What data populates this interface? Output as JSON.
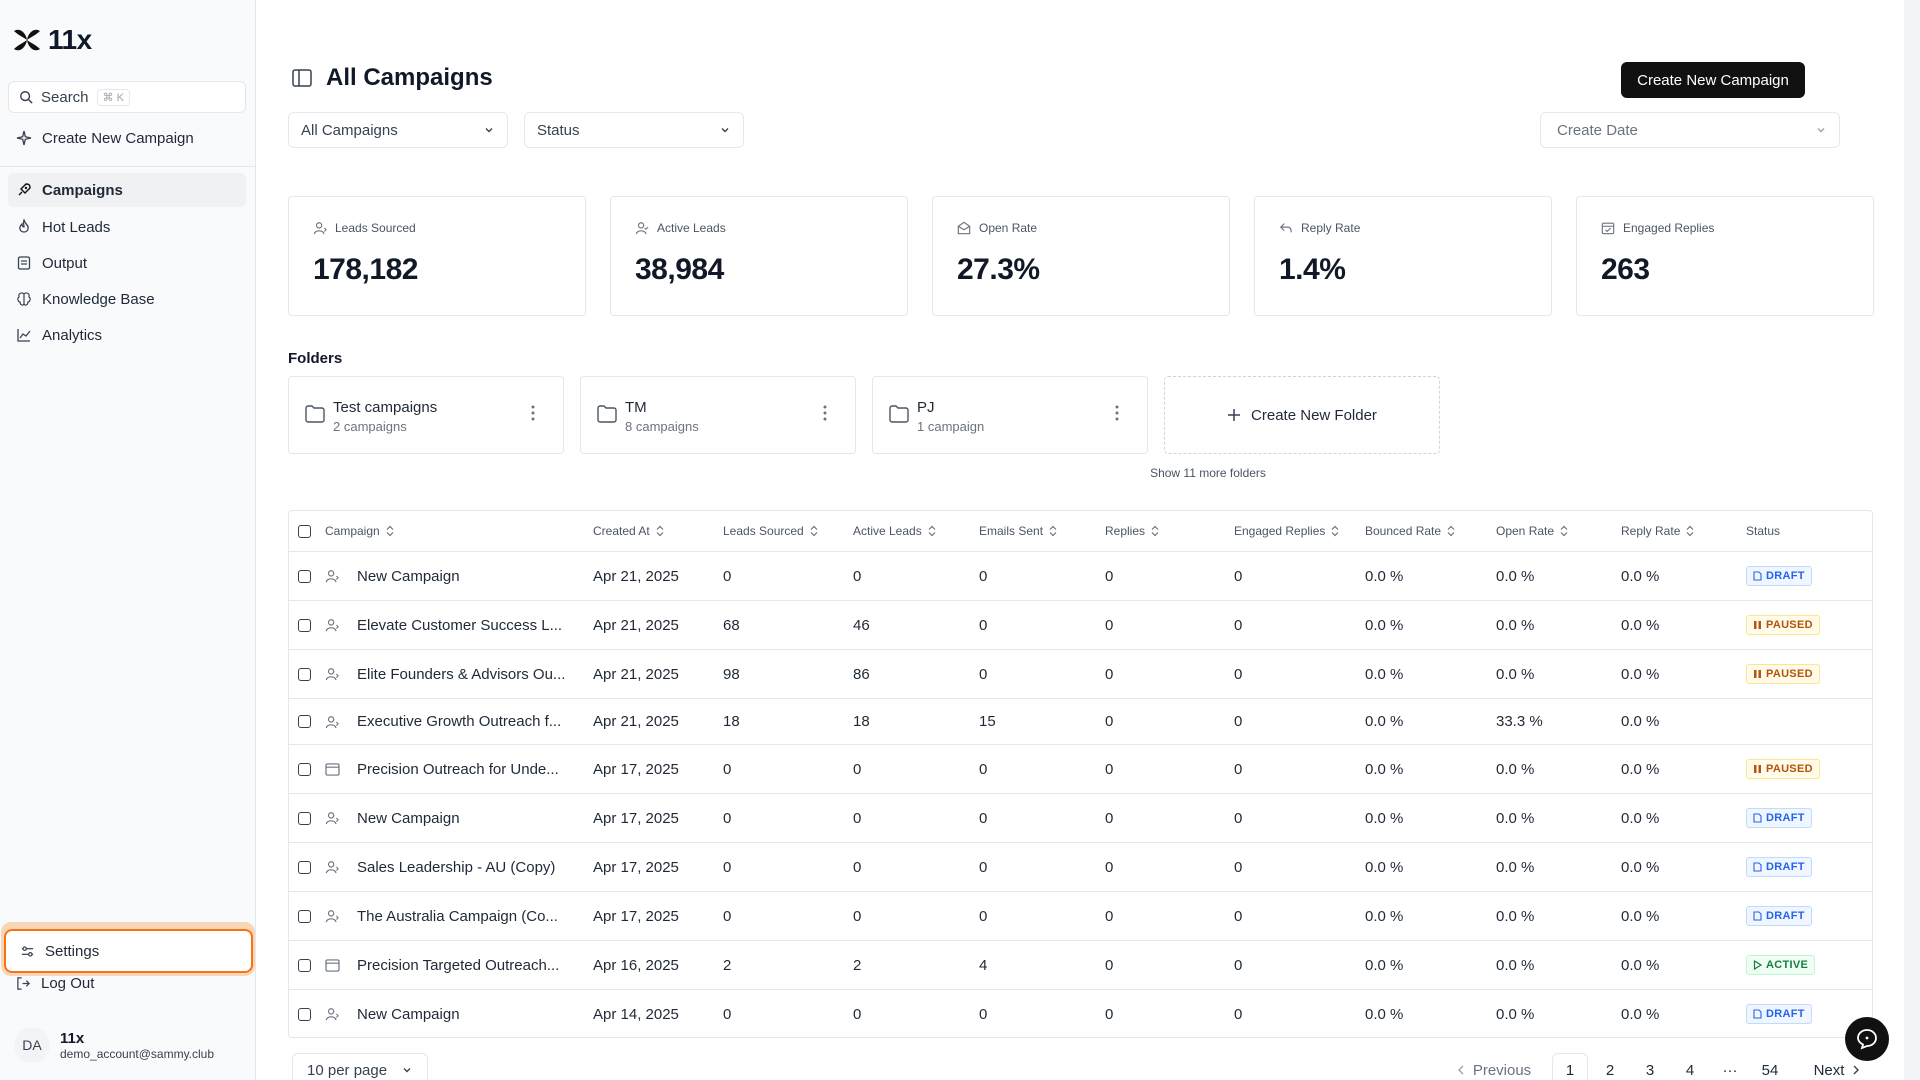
{
  "brand": {
    "name": "11x"
  },
  "sidebar": {
    "search_label": "Search",
    "search_shortcut": "⌘ K",
    "create_label": "Create New Campaign",
    "items": [
      {
        "label": "Campaigns",
        "icon": "rocket-icon"
      },
      {
        "label": "Hot Leads",
        "icon": "flame-icon"
      },
      {
        "label": "Output",
        "icon": "document-icon"
      },
      {
        "label": "Knowledge Base",
        "icon": "brain-icon"
      },
      {
        "label": "Analytics",
        "icon": "chart-icon"
      }
    ],
    "settings_label": "Settings",
    "logout_label": "Log Out",
    "user": {
      "initials": "DA",
      "name": "11x",
      "email": "demo_account@sammy.club"
    }
  },
  "header": {
    "title": "All Campaigns",
    "create_button": "Create New Campaign",
    "filter_campaigns": "All Campaigns",
    "filter_status": "Status",
    "sort_date": "Create Date"
  },
  "metrics": [
    {
      "label": "Leads Sourced",
      "value": "178,182",
      "icon": "user-icon"
    },
    {
      "label": "Active Leads",
      "value": "38,984",
      "icon": "user-check-icon"
    },
    {
      "label": "Open Rate",
      "value": "27.3%",
      "icon": "mail-open-icon"
    },
    {
      "label": "Reply Rate",
      "value": "1.4%",
      "icon": "reply-icon"
    },
    {
      "label": "Engaged Replies",
      "value": "263",
      "icon": "calendar-check-icon"
    }
  ],
  "folders": {
    "title": "Folders",
    "items": [
      {
        "name": "Test campaigns",
        "count": "2 campaigns"
      },
      {
        "name": "TM",
        "count": "8 campaigns"
      },
      {
        "name": "PJ",
        "count": "1 campaign"
      }
    ],
    "create_label": "Create New Folder",
    "more_label": "Show 11 more folders"
  },
  "table": {
    "headers": [
      "Campaign",
      "Created At",
      "Leads Sourced",
      "Active Leads",
      "Emails Sent",
      "Replies",
      "Engaged Replies",
      "Bounced Rate",
      "Open Rate",
      "Reply Rate",
      "Status"
    ],
    "rows": [
      {
        "type": "person",
        "name": "New Campaign",
        "created": "Apr 21, 2025",
        "leads": "0",
        "active": "0",
        "sent": "0",
        "replies": "0",
        "engaged": "0",
        "bounced": "0.0 %",
        "open": "0.0 %",
        "reply": "0.0 %",
        "status": "DRAFT"
      },
      {
        "type": "person",
        "name": "Elevate Customer Success L...",
        "created": "Apr 21, 2025",
        "leads": "68",
        "active": "46",
        "sent": "0",
        "replies": "0",
        "engaged": "0",
        "bounced": "0.0 %",
        "open": "0.0 %",
        "reply": "0.0 %",
        "status": "PAUSED"
      },
      {
        "type": "person",
        "name": "Elite Founders & Advisors Ou...",
        "created": "Apr 21, 2025",
        "leads": "98",
        "active": "86",
        "sent": "0",
        "replies": "0",
        "engaged": "0",
        "bounced": "0.0 %",
        "open": "0.0 %",
        "reply": "0.0 %",
        "status": "PAUSED"
      },
      {
        "type": "person",
        "name": "Executive Growth Outreach f...",
        "created": "Apr 21, 2025",
        "leads": "18",
        "active": "18",
        "sent": "15",
        "replies": "0",
        "engaged": "0",
        "bounced": "0.0 %",
        "open": "33.3 %",
        "reply": "0.0 %",
        "status": ""
      },
      {
        "type": "card",
        "name": "Precision Outreach for Unde...",
        "created": "Apr 17, 2025",
        "leads": "0",
        "active": "0",
        "sent": "0",
        "replies": "0",
        "engaged": "0",
        "bounced": "0.0 %",
        "open": "0.0 %",
        "reply": "0.0 %",
        "status": "PAUSED"
      },
      {
        "type": "person",
        "name": "New Campaign",
        "created": "Apr 17, 2025",
        "leads": "0",
        "active": "0",
        "sent": "0",
        "replies": "0",
        "engaged": "0",
        "bounced": "0.0 %",
        "open": "0.0 %",
        "reply": "0.0 %",
        "status": "DRAFT"
      },
      {
        "type": "person",
        "name": "Sales Leadership - AU (Copy)",
        "created": "Apr 17, 2025",
        "leads": "0",
        "active": "0",
        "sent": "0",
        "replies": "0",
        "engaged": "0",
        "bounced": "0.0 %",
        "open": "0.0 %",
        "reply": "0.0 %",
        "status": "DRAFT"
      },
      {
        "type": "person",
        "name": "The Australia Campaign (Co...",
        "created": "Apr 17, 2025",
        "leads": "0",
        "active": "0",
        "sent": "0",
        "replies": "0",
        "engaged": "0",
        "bounced": "0.0 %",
        "open": "0.0 %",
        "reply": "0.0 %",
        "status": "DRAFT"
      },
      {
        "type": "card",
        "name": "Precision Targeted Outreach...",
        "created": "Apr 16, 2025",
        "leads": "2",
        "active": "2",
        "sent": "4",
        "replies": "0",
        "engaged": "0",
        "bounced": "0.0 %",
        "open": "0.0 %",
        "reply": "0.0 %",
        "status": "ACTIVE"
      },
      {
        "type": "person",
        "name": "New Campaign",
        "created": "Apr 14, 2025",
        "leads": "0",
        "active": "0",
        "sent": "0",
        "replies": "0",
        "engaged": "0",
        "bounced": "0.0 %",
        "open": "0.0 %",
        "reply": "0.0 %",
        "status": "DRAFT"
      }
    ]
  },
  "pagination": {
    "per_page": "10 per page",
    "previous": "Previous",
    "next": "Next",
    "pages": [
      "1",
      "2",
      "3",
      "4"
    ],
    "ellipsis": "···",
    "last": "54"
  },
  "colors": {
    "draft": "#2563eb",
    "paused": "#b45309",
    "active": "#15803d",
    "accent": "#f97316"
  }
}
